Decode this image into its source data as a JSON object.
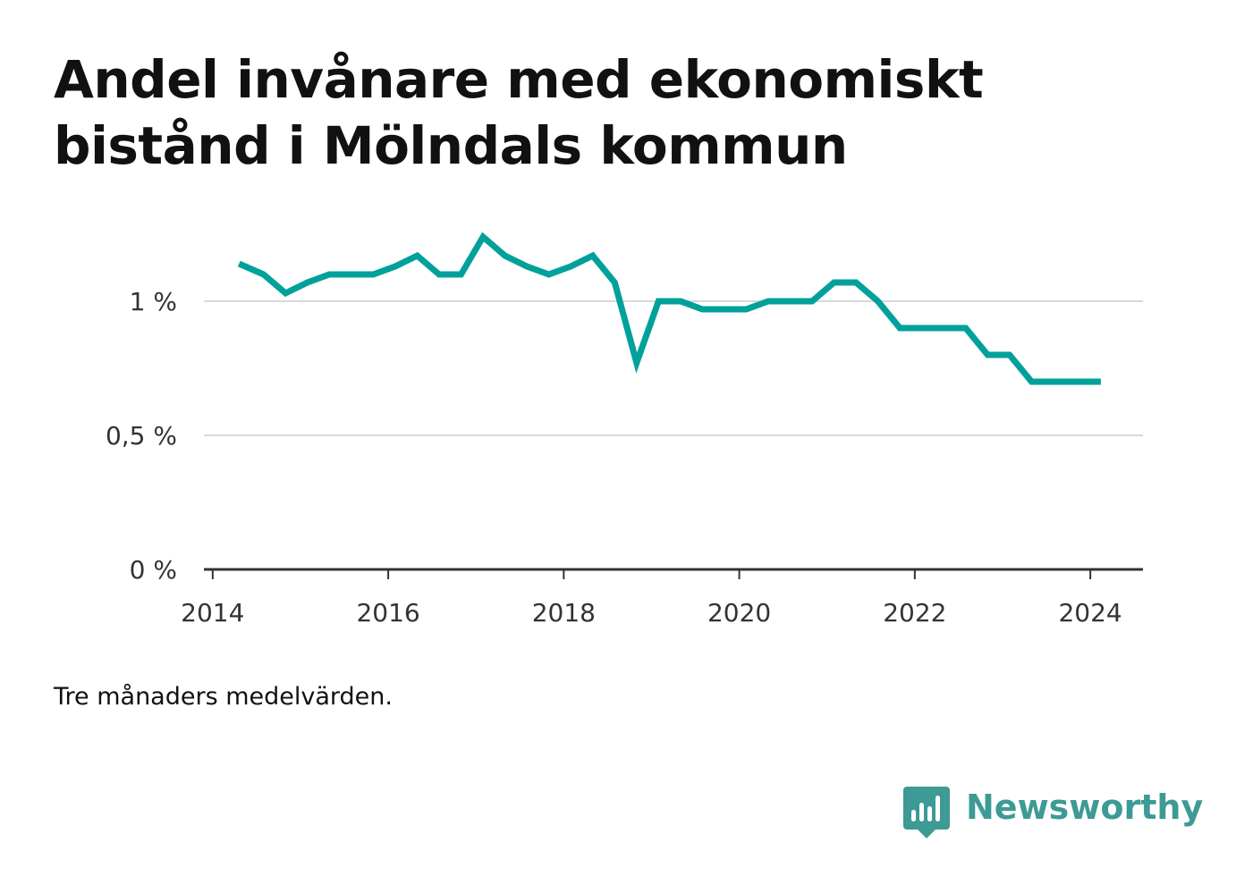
{
  "title": "Andel invånare med ekonomiskt bistånd i Mölndals kommun",
  "note": "Tre månaders medelvärden.",
  "brand": {
    "name": "Newsworthy",
    "logo_icon": "newsworthy-bar-chart-icon",
    "color": "#3d9a94"
  },
  "chart_data": {
    "type": "line",
    "title": "Andel invånare med ekonomiskt bistånd i Mölndals kommun",
    "xlabel": "",
    "ylabel": "",
    "x_ticks": [
      2014,
      2016,
      2018,
      2020,
      2022,
      2024
    ],
    "x_tick_labels": [
      "2014",
      "2016",
      "2018",
      "2020",
      "2022",
      "2024"
    ],
    "y_ticks": [
      0,
      0.5,
      1
    ],
    "y_tick_labels": [
      "0 %",
      "0,5 %",
      "1 %"
    ],
    "xlim": [
      2013.9,
      2024.6
    ],
    "ylim": [
      0,
      1.25
    ],
    "grid": "horizontal",
    "line_color": "#00a19a",
    "series": [
      {
        "x": [
          2014.3,
          2014.58,
          2014.83,
          2015.08,
          2015.33,
          2015.58,
          2015.83,
          2016.08,
          2016.33,
          2016.58,
          2016.83,
          2017.08,
          2017.33,
          2017.58,
          2017.83,
          2018.08,
          2018.33,
          2018.58,
          2018.83,
          2019.08,
          2019.33,
          2019.58,
          2019.83,
          2020.08,
          2020.33,
          2020.58,
          2020.83,
          2021.08,
          2021.33,
          2021.58,
          2021.83,
          2022.08,
          2022.33,
          2022.58,
          2022.83,
          2023.08,
          2023.33,
          2023.58,
          2023.83,
          2024.08,
          2024.12
        ],
        "values": [
          1.14,
          1.1,
          1.03,
          1.07,
          1.1,
          1.1,
          1.1,
          1.13,
          1.17,
          1.1,
          1.1,
          1.24,
          1.17,
          1.13,
          1.1,
          1.13,
          1.17,
          1.07,
          0.77,
          1.0,
          1.0,
          0.97,
          0.97,
          0.97,
          1.0,
          1.0,
          1.0,
          1.07,
          1.07,
          1.0,
          0.9,
          0.9,
          0.9,
          0.9,
          0.8,
          0.8,
          0.7,
          0.7,
          0.7,
          0.7,
          0.7
        ]
      }
    ]
  }
}
